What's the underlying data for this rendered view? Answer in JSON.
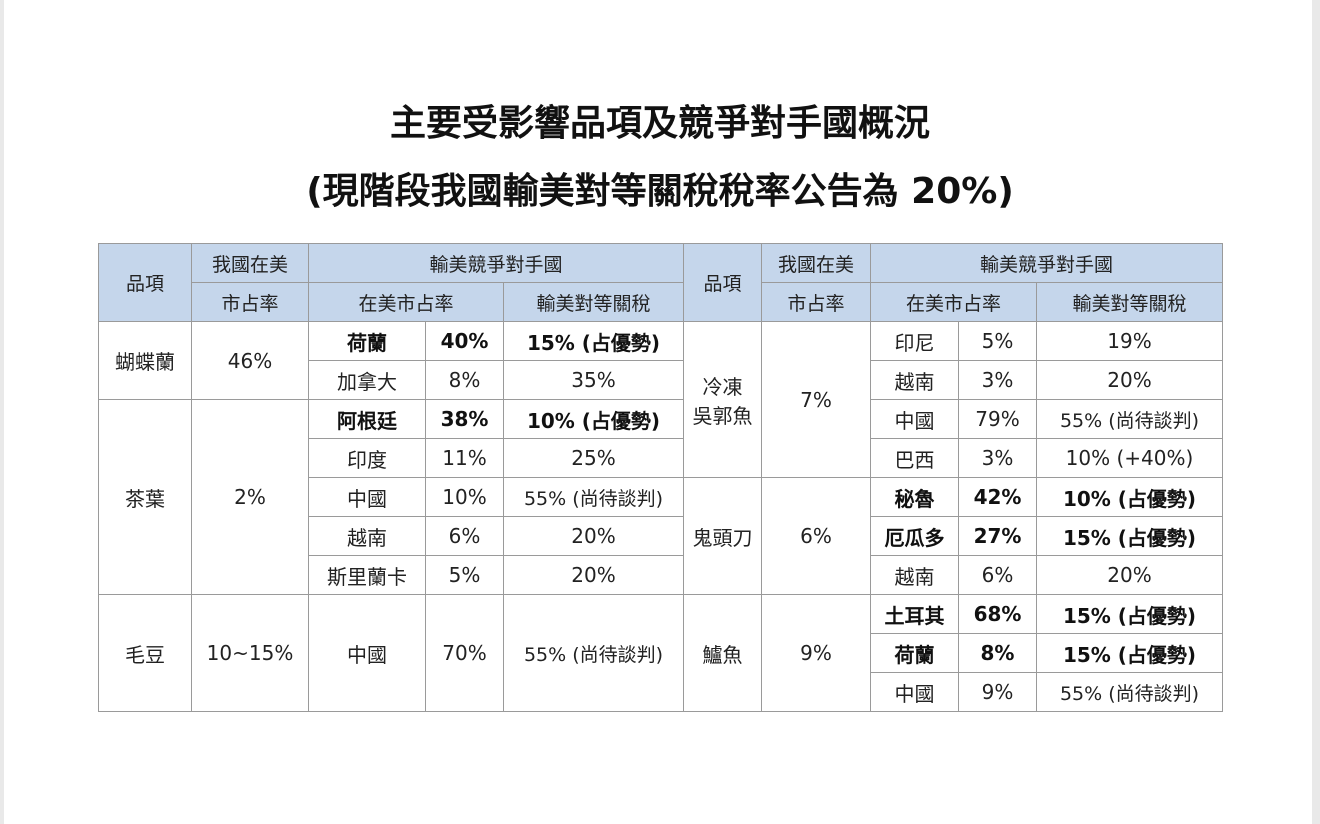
{
  "title_line1": "主要受影響品項及競爭對手國概況",
  "title_line2": "(現階段我國輸美對等關稅稅率公告為 20%)",
  "header": {
    "item": "品項",
    "share_l1": "我國在美",
    "share_l2": "市占率",
    "competitors": "輸美競爭對手國",
    "market_share": "在美市占率",
    "tariff": "輸美對等關稅"
  },
  "left": {
    "orchid": {
      "name": "蝴蝶蘭",
      "share": "46%",
      "rows": [
        {
          "country": "荷蘭",
          "pct": "40%",
          "tariff": "15% (占優勢)"
        },
        {
          "country": "加拿大",
          "pct": "8%",
          "tariff": "35%"
        }
      ]
    },
    "tea": {
      "name": "茶葉",
      "share": "2%",
      "rows": [
        {
          "country": "阿根廷",
          "pct": "38%",
          "tariff": "10% (占優勢)"
        },
        {
          "country": "印度",
          "pct": "11%",
          "tariff": "25%"
        },
        {
          "country": "中國",
          "pct": "10%",
          "tariff": "55% (尚待談判)"
        },
        {
          "country": "越南",
          "pct": "6%",
          "tariff": "20%"
        },
        {
          "country": "斯里蘭卡",
          "pct": "5%",
          "tariff": "20%"
        }
      ]
    },
    "edamame": {
      "name": "毛豆",
      "share": "10~15%",
      "rows": [
        {
          "country": "中國",
          "pct": "70%",
          "tariff": "55% (尚待談判)"
        }
      ]
    }
  },
  "right": {
    "tilapia": {
      "name_l1": "冷凍",
      "name_l2": "吳郭魚",
      "share": "7%",
      "rows": [
        {
          "country": "印尼",
          "pct": "5%",
          "tariff": "19%"
        },
        {
          "country": "越南",
          "pct": "3%",
          "tariff": "20%"
        },
        {
          "country": "中國",
          "pct": "79%",
          "tariff": "55% (尚待談判)"
        },
        {
          "country": "巴西",
          "pct": "3%",
          "tariff": "10% (+40%)"
        }
      ]
    },
    "mahimahi": {
      "name": "鬼頭刀",
      "share": "6%",
      "rows": [
        {
          "country": "秘魯",
          "pct": "42%",
          "tariff": "10% (占優勢)"
        },
        {
          "country": "厄瓜多",
          "pct": "27%",
          "tariff": "15% (占優勢)"
        },
        {
          "country": "越南",
          "pct": "6%",
          "tariff": "20%"
        }
      ]
    },
    "seabass": {
      "name": "鱸魚",
      "share": "9%",
      "rows": [
        {
          "country": "土耳其",
          "pct": "68%",
          "tariff": "15% (占優勢)"
        },
        {
          "country": "荷蘭",
          "pct": "8%",
          "tariff": "15% (占優勢)"
        },
        {
          "country": "中國",
          "pct": "9%",
          "tariff": "55% (尚待談判)"
        }
      ]
    }
  }
}
